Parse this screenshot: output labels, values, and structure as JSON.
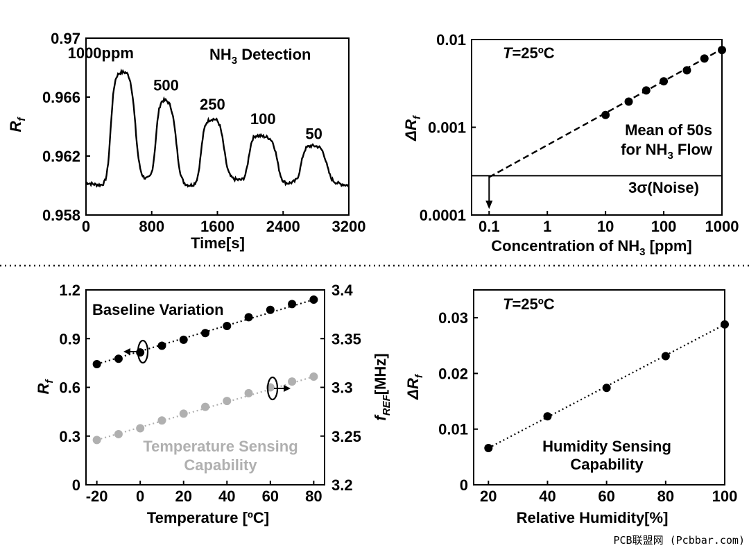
{
  "chart_data": [
    {
      "type": "line",
      "title": "NH3 Detection",
      "title_main": "NH",
      "title_sub": "3",
      "title_rest": " Detection",
      "xlabel": "Time[s]",
      "ylabel_main": "R",
      "ylabel_sub": "f",
      "xlim": [
        0,
        3200
      ],
      "ylim": [
        0.958,
        0.97
      ],
      "xticks": [
        "0",
        "800",
        "1600",
        "2400",
        "3200"
      ],
      "xtick_values": [
        0,
        800,
        1600,
        2400,
        3200
      ],
      "yticks": [
        "0.958",
        "0.962",
        "0.966",
        "0.97"
      ],
      "ytick_values": [
        0.958,
        0.962,
        0.966,
        0.97
      ],
      "baseline": 0.9602,
      "pulses": [
        {
          "label": "1000ppm",
          "start": 300,
          "end": 600,
          "peak": 0.9678
        },
        {
          "label": "500",
          "start": 850,
          "end": 1100,
          "peak": 0.9658
        },
        {
          "label": "250",
          "start": 1400,
          "end": 1680,
          "peak": 0.9645
        },
        {
          "label": "100",
          "start": 1980,
          "end": 2330,
          "peak": 0.9635
        },
        {
          "label": "50",
          "start": 2620,
          "end": 2930,
          "peak": 0.9625
        }
      ]
    },
    {
      "type": "scatter",
      "annotation": "T=25ºC",
      "ann_T": "T",
      "ann_rest": "=25ºC",
      "xlabel": "Concentration of NH3 [ppm]",
      "xlabel_main": "Concentration of NH",
      "xlabel_sub": "3",
      "xlabel_rest": " [ppm]",
      "ylabel_main": "ΔR",
      "ylabel_sub": "f",
      "xscale": "log",
      "yscale": "log",
      "xlim": [
        0.05,
        1000
      ],
      "ylim": [
        0.0001,
        0.01
      ],
      "xticks": [
        "0.1",
        "1",
        "10",
        "100",
        "1000"
      ],
      "xtick_values": [
        0.1,
        1,
        10,
        100,
        1000
      ],
      "yticks": [
        "0.0001",
        "0.001",
        "0.01"
      ],
      "ytick_values": [
        0.0001,
        0.001,
        0.01
      ],
      "x": [
        10,
        25,
        50,
        100,
        250,
        500,
        1000
      ],
      "y": [
        0.00138,
        0.00196,
        0.00263,
        0.00334,
        0.00446,
        0.00607,
        0.0076
      ],
      "fit_from": [
        0.1,
        0.00027
      ],
      "fit_to": [
        1000,
        0.0078
      ],
      "noise_level": 0.00028,
      "noise_label": "3σ(Noise)",
      "legend_line1": "Mean of 50s",
      "legend_line2_main": "for NH",
      "legend_line2_sub": "3",
      "legend_line2_rest": " Flow",
      "detection_limit": 0.1
    },
    {
      "type": "scatter",
      "xlabel": "Temperature [ºC]",
      "ylabel_main": "R",
      "ylabel_sub": "f",
      "y2label_f": "f",
      "y2label_sub": "REF",
      "y2label_rest": "[MHz]",
      "xlim": [
        -25,
        85
      ],
      "ylim": [
        0,
        1.2
      ],
      "y2lim": [
        3.2,
        3.4
      ],
      "xticks": [
        "-20",
        "0",
        "20",
        "40",
        "60",
        "80"
      ],
      "xtick_values": [
        -20,
        0,
        20,
        40,
        60,
        80
      ],
      "yticks": [
        "0",
        "0.3",
        "0.6",
        "0.9",
        "1.2"
      ],
      "ytick_values": [
        0,
        0.3,
        0.6,
        0.9,
        1.2
      ],
      "y2ticks": [
        "3.2",
        "3.25",
        "3.3",
        "3.35",
        "3.4"
      ],
      "y2tick_values": [
        3.2,
        3.25,
        3.3,
        3.35,
        3.4
      ],
      "series": [
        {
          "name": "Baseline Variation",
          "axis": "left",
          "color": "#000000",
          "x": [
            -20,
            -10,
            0,
            10,
            20,
            30,
            40,
            50,
            60,
            70,
            80
          ],
          "values": [
            0.743,
            0.776,
            0.815,
            0.856,
            0.893,
            0.934,
            0.978,
            1.032,
            1.077,
            1.113,
            1.14
          ]
        },
        {
          "name": "Temperature Sensing Capability",
          "name_line1": "Temperature Sensing",
          "name_line2": "Capability",
          "axis": "right",
          "color": "#b0b0b0",
          "x": [
            -20,
            -10,
            0,
            10,
            20,
            30,
            40,
            50,
            60,
            70,
            80
          ],
          "values": [
            3.246,
            3.252,
            3.258,
            3.266,
            3.273,
            3.28,
            3.286,
            3.294,
            3.3,
            3.306,
            3.311
          ]
        }
      ]
    },
    {
      "type": "scatter",
      "annotation": "T=25ºC",
      "ann_T": "T",
      "ann_rest": "=25ºC",
      "xlabel": "Relative Humidity[%]",
      "ylabel_main": "ΔR",
      "ylabel_sub": "f",
      "xlim": [
        15,
        100
      ],
      "ylim": [
        0,
        0.035
      ],
      "xticks": [
        "20",
        "40",
        "60",
        "80",
        "100"
      ],
      "xtick_values": [
        20,
        40,
        60,
        80,
        100
      ],
      "yticks": [
        "0",
        "0.01",
        "0.02",
        "0.03"
      ],
      "ytick_values": [
        0,
        0.01,
        0.02,
        0.03
      ],
      "x": [
        20,
        40,
        60,
        80,
        100
      ],
      "y": [
        0.0066,
        0.0123,
        0.0174,
        0.0231,
        0.0288
      ],
      "label_line1": "Humidity Sensing",
      "label_line2": "Capability"
    }
  ],
  "watermark": "PCB联盟网 (Pcbbar.com)"
}
